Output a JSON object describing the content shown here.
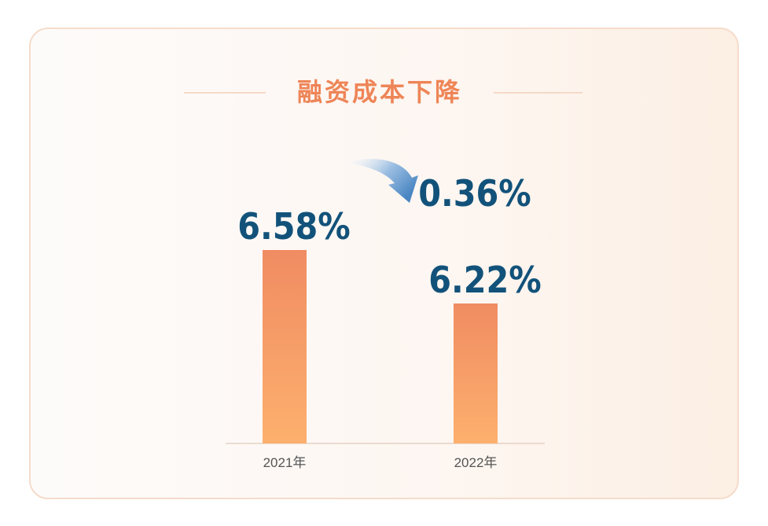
{
  "title": "融资成本下降",
  "colors": {
    "title": "#ee8557",
    "value_text": "#12527a",
    "bar_top": "#f08c62",
    "bar_bottom": "#fdb06e",
    "arrow": "#4a86c2"
  },
  "icons": {
    "decrease_arrow": "curved-down-arrow-icon"
  },
  "chart_data": {
    "type": "bar",
    "title": "融资成本下降",
    "categories": [
      "2021年",
      "2022年"
    ],
    "values": [
      6.58,
      6.22
    ],
    "value_labels": [
      "6.58%",
      "6.22%"
    ],
    "unit": "%",
    "annotation": {
      "label": "0.36%",
      "meaning": "decrease from 2021年 to 2022年"
    },
    "xlabel": "",
    "ylabel": "",
    "grid": false,
    "legend": false
  }
}
